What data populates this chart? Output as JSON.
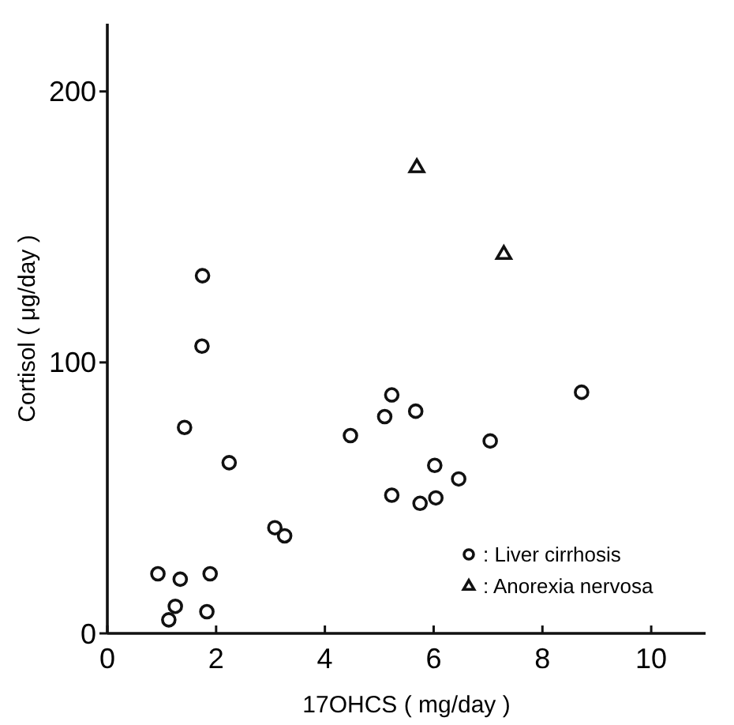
{
  "chart_data": {
    "type": "scatter",
    "xlabel": "17OHCS ( mg/day )",
    "ylabel": "Cortisol ( μg/day )",
    "xlim": [
      0,
      11
    ],
    "ylim": [
      0,
      225
    ],
    "xticks": [
      0,
      2,
      4,
      6,
      8,
      10
    ],
    "yticks": [
      0,
      100,
      200
    ],
    "grid": false,
    "legend": "bottom right",
    "series": [
      {
        "name": ": Liver cirrhosis",
        "color": "#111111",
        "marker": "circle",
        "x": [
          0.93,
          1.34,
          1.89,
          1.25,
          1.13,
          1.83,
          1.42,
          1.75,
          1.74,
          2.24,
          3.08,
          3.26,
          4.47,
          5.23,
          5.1,
          5.67,
          5.23,
          5.75,
          6.04,
          6.02,
          6.46,
          7.04,
          8.72
        ],
        "values": [
          22,
          20,
          22,
          10,
          5,
          8,
          76,
          132,
          106,
          63,
          39,
          36,
          73,
          88,
          80,
          82,
          51,
          48,
          50,
          62,
          57,
          71,
          89
        ]
      },
      {
        "name": ": Anorexia nervosa",
        "color": "#111111",
        "marker": "triangle",
        "x": [
          5.69,
          7.29
        ],
        "values": [
          172,
          140
        ]
      }
    ]
  }
}
